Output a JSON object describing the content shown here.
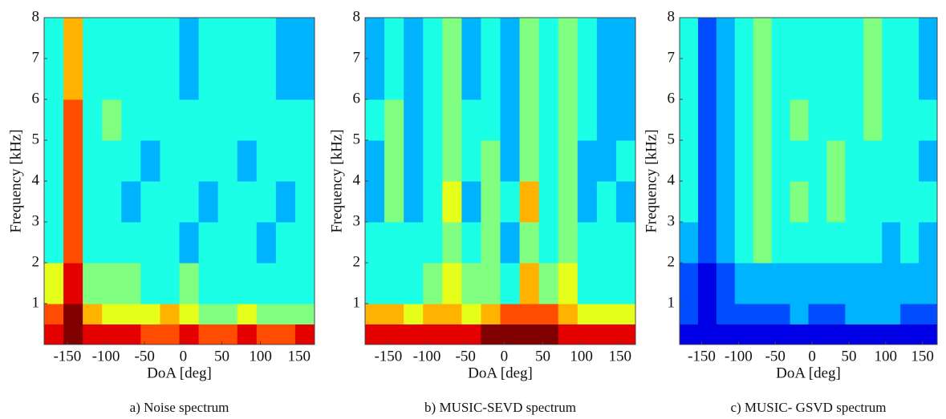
{
  "chart_data": [
    {
      "type": "heatmap",
      "title": "a) Noise spectrum",
      "xlabel": "DoA [deg]",
      "ylabel": "Frequency [kHz]",
      "colormap": "jet",
      "xlim": [
        -180,
        170
      ],
      "ylim": [
        0,
        8
      ],
      "zlim": [
        0,
        10
      ],
      "xticks": [
        -150,
        -100,
        -50,
        0,
        50,
        100,
        150
      ],
      "yticks": [
        1,
        2,
        3,
        4,
        5,
        6,
        7,
        8
      ],
      "xbins": [
        -180,
        -155,
        -130,
        -105,
        -80,
        -55,
        -30,
        -5,
        20,
        45,
        70,
        95,
        120,
        145,
        170
      ],
      "ybins": [
        0,
        0.5,
        1,
        2,
        3,
        4,
        5,
        6,
        8
      ],
      "z": [
        [
          9,
          10,
          9,
          9,
          9,
          8,
          8,
          9,
          8,
          8,
          9,
          8,
          8,
          9
        ],
        [
          8,
          10,
          7,
          6,
          6,
          6,
          7,
          6,
          5,
          5,
          6,
          5,
          5,
          5
        ],
        [
          6,
          9,
          5,
          5,
          5,
          4,
          4,
          5,
          4,
          4,
          4,
          4,
          4,
          4
        ],
        [
          4,
          8,
          4,
          4,
          4,
          4,
          4,
          3,
          4,
          4,
          4,
          3,
          4,
          4
        ],
        [
          4,
          8,
          4,
          4,
          3,
          4,
          4,
          4,
          3,
          4,
          4,
          4,
          3,
          4
        ],
        [
          4,
          8,
          4,
          4,
          4,
          3,
          4,
          4,
          4,
          4,
          3,
          4,
          4,
          4
        ],
        [
          4,
          8,
          4,
          5,
          4,
          4,
          4,
          4,
          4,
          4,
          4,
          4,
          4,
          4
        ],
        [
          4,
          7,
          4,
          4,
          4,
          4,
          4,
          3,
          4,
          4,
          4,
          4,
          3,
          3
        ]
      ]
    },
    {
      "type": "heatmap",
      "title": "b) MUSIC-SEVD spectrum",
      "xlabel": "DoA [deg]",
      "ylabel": "Frequency [kHz]",
      "colormap": "jet",
      "xlim": [
        -180,
        170
      ],
      "ylim": [
        0,
        8
      ],
      "zlim": [
        0,
        10
      ],
      "xticks": [
        -150,
        -100,
        -50,
        0,
        50,
        100,
        150
      ],
      "yticks": [
        1,
        2,
        3,
        4,
        5,
        6,
        7,
        8
      ],
      "xbins": [
        -180,
        -155,
        -130,
        -105,
        -80,
        -55,
        -30,
        -5,
        20,
        45,
        70,
        95,
        120,
        145,
        170
      ],
      "ybins": [
        0,
        0.5,
        1,
        2,
        3,
        4,
        5,
        6,
        8
      ],
      "z": [
        [
          9,
          9,
          9,
          9,
          9,
          9,
          10,
          10,
          10,
          10,
          9,
          9,
          9,
          9
        ],
        [
          7,
          7,
          6,
          7,
          7,
          6,
          7,
          8,
          8,
          8,
          7,
          6,
          6,
          6
        ],
        [
          4,
          4,
          4,
          5,
          6,
          5,
          5,
          4,
          7,
          5,
          6,
          4,
          4,
          4
        ],
        [
          4,
          4,
          4,
          4,
          5,
          4,
          5,
          3,
          5,
          4,
          5,
          4,
          4,
          4
        ],
        [
          3,
          5,
          3,
          4,
          6,
          3,
          5,
          4,
          7,
          4,
          5,
          3,
          4,
          3
        ],
        [
          3,
          5,
          3,
          4,
          5,
          4,
          5,
          3,
          5,
          4,
          5,
          3,
          3,
          4
        ],
        [
          4,
          5,
          3,
          4,
          5,
          4,
          4,
          3,
          5,
          4,
          5,
          4,
          3,
          3
        ],
        [
          3,
          4,
          3,
          4,
          5,
          3,
          4,
          3,
          5,
          4,
          5,
          4,
          3,
          3
        ]
      ]
    },
    {
      "type": "heatmap",
      "title": "c) MUSIC- GSVD spectrum",
      "xlabel": "DoA [deg]",
      "ylabel": "Frequency [kHz]",
      "colormap": "jet",
      "xlim": [
        -180,
        170
      ],
      "ylim": [
        0,
        8
      ],
      "zlim": [
        0,
        10
      ],
      "xticks": [
        -150,
        -100,
        -50,
        0,
        50,
        100,
        150
      ],
      "yticks": [
        1,
        2,
        3,
        4,
        5,
        6,
        7,
        8
      ],
      "xbins": [
        -180,
        -155,
        -130,
        -105,
        -80,
        -55,
        -30,
        -5,
        20,
        45,
        70,
        95,
        120,
        145,
        170
      ],
      "ybins": [
        0,
        0.5,
        1,
        2,
        3,
        4,
        5,
        6,
        8
      ],
      "z": [
        [
          1,
          1,
          1,
          1,
          1,
          1,
          1,
          1,
          1,
          1,
          1,
          1,
          1,
          1
        ],
        [
          2,
          1,
          2,
          2,
          2,
          2,
          3,
          2,
          2,
          3,
          3,
          3,
          2,
          2
        ],
        [
          2,
          1,
          2,
          3,
          3,
          3,
          3,
          3,
          3,
          3,
          3,
          3,
          3,
          3
        ],
        [
          3,
          2,
          3,
          4,
          5,
          4,
          4,
          4,
          4,
          4,
          4,
          3,
          4,
          3
        ],
        [
          4,
          2,
          3,
          4,
          5,
          4,
          5,
          4,
          5,
          4,
          4,
          4,
          4,
          4
        ],
        [
          4,
          2,
          3,
          4,
          5,
          4,
          4,
          4,
          5,
          4,
          4,
          4,
          4,
          3
        ],
        [
          4,
          2,
          3,
          4,
          5,
          4,
          5,
          4,
          4,
          4,
          5,
          4,
          4,
          4
        ],
        [
          4,
          2,
          3,
          4,
          5,
          4,
          4,
          4,
          4,
          4,
          5,
          4,
          4,
          3
        ]
      ]
    }
  ]
}
